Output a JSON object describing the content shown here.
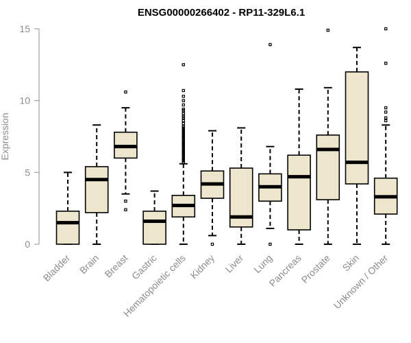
{
  "chart_data": {
    "type": "box",
    "title": "ENSG00000266402 - RP11-329L6.1",
    "xlabel": "",
    "ylabel": "Expression",
    "ylim": [
      0,
      15
    ],
    "yticks": [
      0,
      5,
      10,
      15
    ],
    "grid": false,
    "colors": {
      "box_fill": "#ede6cc",
      "stroke": "#000000",
      "axis": "#8c8c8c",
      "outlier": "#000000"
    },
    "categories": [
      "Bladder",
      "Brain",
      "Breast",
      "Gastric",
      "Hematopoietic cells",
      "Kidney",
      "Liver",
      "Lung",
      "Pancreas",
      "Prostate",
      "Skin",
      "Unknown / Other"
    ],
    "boxes": [
      {
        "name": "Bladder",
        "min": 0,
        "q1": 0,
        "median": 1.5,
        "q3": 2.3,
        "max": 5.0,
        "outliers": []
      },
      {
        "name": "Brain",
        "min": 0,
        "q1": 2.2,
        "median": 4.5,
        "q3": 5.4,
        "max": 8.3,
        "outliers": []
      },
      {
        "name": "Breast",
        "min": 3.5,
        "q1": 6.0,
        "median": 6.8,
        "q3": 7.8,
        "max": 9.5,
        "outliers": [
          10.6,
          3.0,
          2.4
        ]
      },
      {
        "name": "Gastric",
        "min": 0,
        "q1": 0,
        "median": 1.6,
        "q3": 2.3,
        "max": 3.7,
        "outliers": []
      },
      {
        "name": "Hematopoietic cells",
        "min": 0,
        "q1": 1.9,
        "median": 2.7,
        "q3": 3.4,
        "max": 5.6,
        "outliers": [
          12.5,
          10.7,
          10.3,
          10.0,
          9.7,
          9.4,
          9.3,
          9.1,
          8.9,
          8.8,
          8.6,
          8.4,
          8.2,
          8.1,
          8.0,
          7.9,
          7.8,
          7.7,
          7.6,
          7.5,
          7.4,
          7.3,
          7.2,
          7.1,
          7.0,
          6.9,
          6.8,
          6.7,
          6.6,
          6.5,
          6.4,
          6.3,
          6.2,
          6.1,
          6.0,
          5.9,
          5.8,
          5.7
        ]
      },
      {
        "name": "Kidney",
        "min": 0.6,
        "q1": 3.2,
        "median": 4.2,
        "q3": 5.1,
        "max": 7.9,
        "outliers": [
          0
        ]
      },
      {
        "name": "Liver",
        "min": 0,
        "q1": 1.2,
        "median": 1.9,
        "q3": 5.3,
        "max": 8.1,
        "outliers": []
      },
      {
        "name": "Lung",
        "min": 1.1,
        "q1": 3.0,
        "median": 4.0,
        "q3": 4.9,
        "max": 6.8,
        "outliers": [
          13.9,
          0
        ]
      },
      {
        "name": "Pancreas",
        "min": 0,
        "q1": 1.0,
        "median": 4.7,
        "q3": 6.2,
        "max": 10.8,
        "outliers": []
      },
      {
        "name": "Prostate",
        "min": 0,
        "q1": 3.1,
        "median": 6.6,
        "q3": 7.6,
        "max": 10.9,
        "outliers": [
          14.9
        ]
      },
      {
        "name": "Skin",
        "min": 0,
        "q1": 4.2,
        "median": 5.7,
        "q3": 12.0,
        "max": 13.7,
        "outliers": []
      },
      {
        "name": "Unknown / Other",
        "min": 0,
        "q1": 2.1,
        "median": 3.3,
        "q3": 4.6,
        "max": 8.3,
        "outliers": [
          15.0,
          12.6,
          9.5,
          9.2,
          8.8,
          8.6
        ]
      }
    ]
  }
}
